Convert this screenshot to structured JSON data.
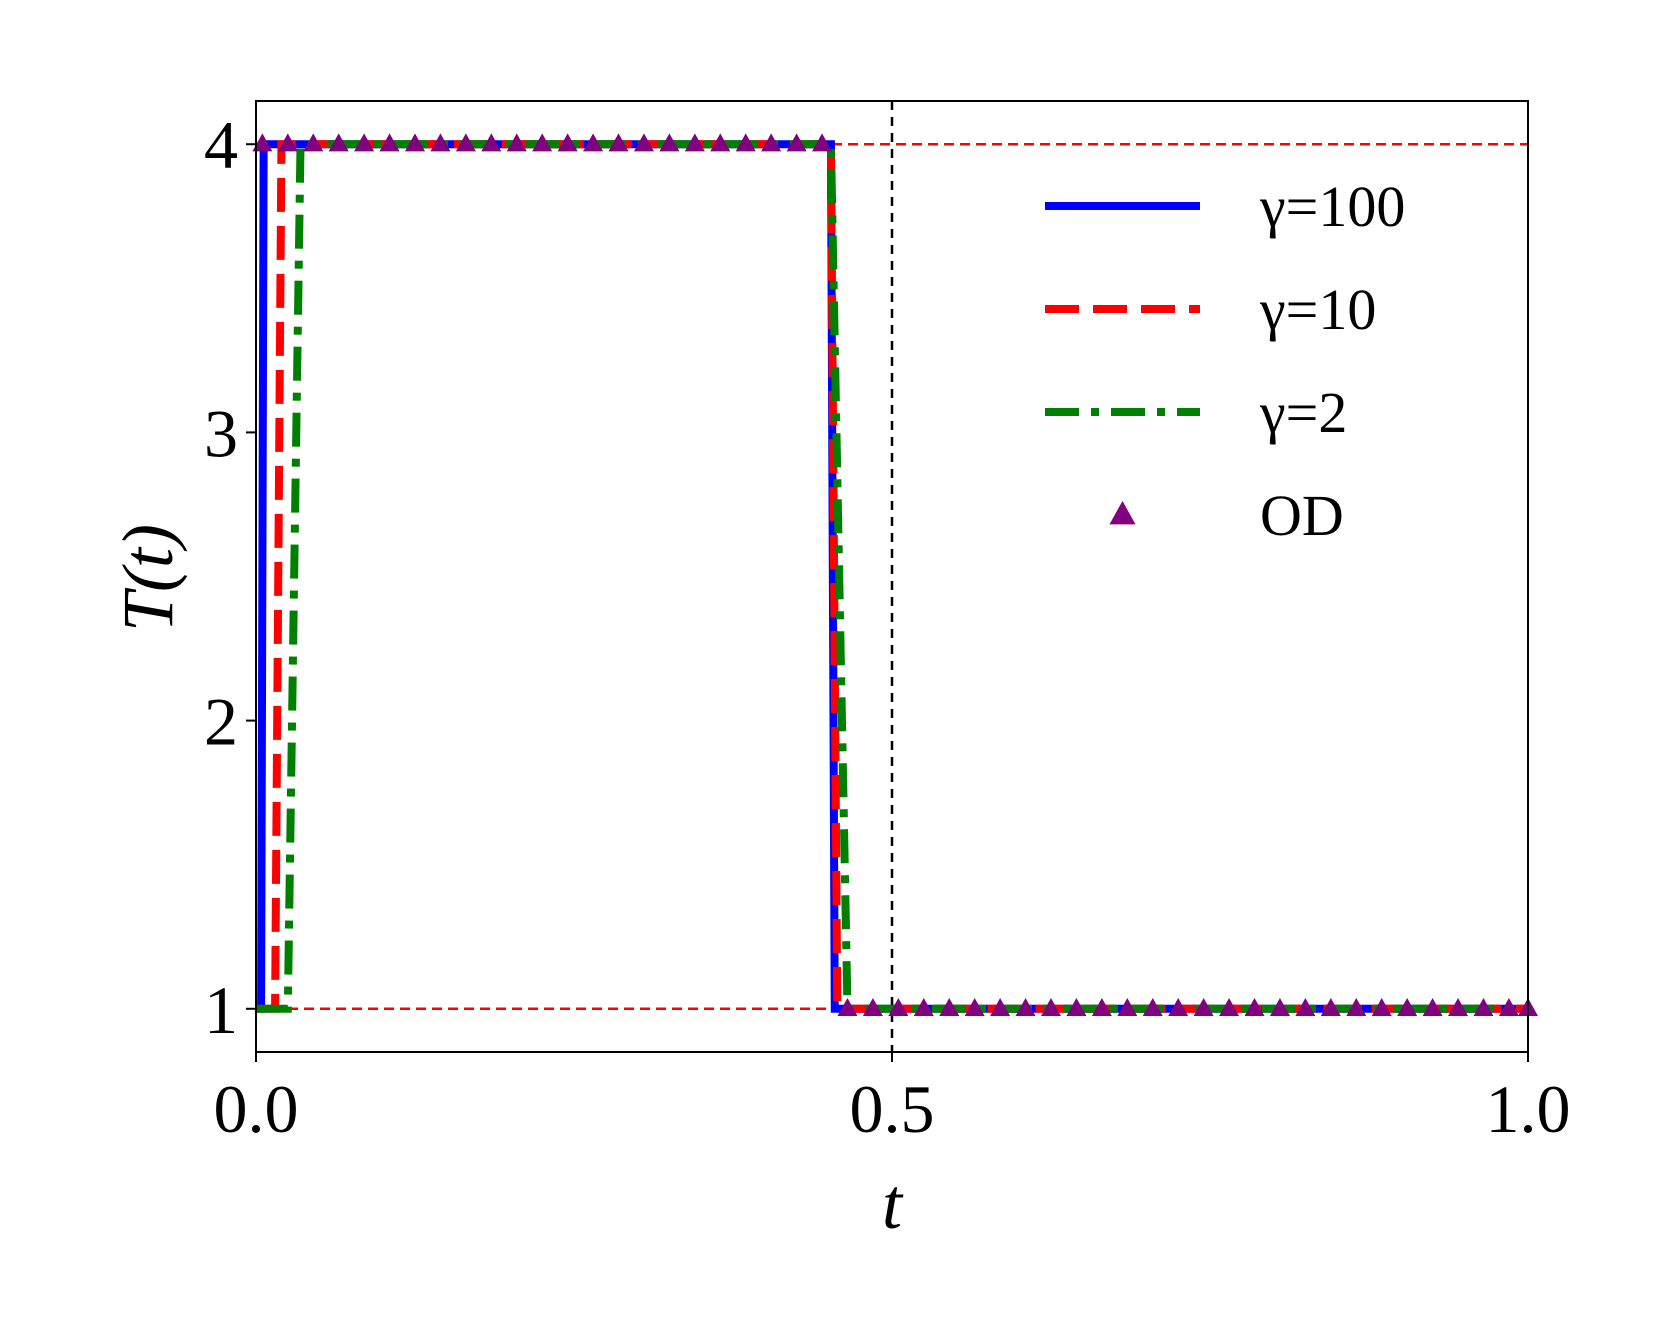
{
  "chart_data": {
    "type": "line",
    "title": "",
    "xlabel": "t",
    "ylabel": "T(t)",
    "xlim": [
      0.0,
      1.0
    ],
    "ylim": [
      0.85,
      4.15
    ],
    "grid": false,
    "legend_position": "top-right",
    "xticks": [
      {
        "value": 0.0,
        "label": "0.0"
      },
      {
        "value": 0.5,
        "label": "0.5"
      },
      {
        "value": 1.0,
        "label": "1.0"
      }
    ],
    "yticks": [
      {
        "value": 1,
        "label": "1"
      },
      {
        "value": 2,
        "label": "2"
      },
      {
        "value": 3,
        "label": "3"
      },
      {
        "value": 4,
        "label": "4"
      }
    ],
    "reference_lines": [
      {
        "orientation": "horizontal",
        "value": 4,
        "color": "#ff0000",
        "style": "dashed"
      },
      {
        "orientation": "horizontal",
        "value": 1,
        "color": "#ff0000",
        "style": "dashed"
      },
      {
        "orientation": "vertical",
        "value": 0.5,
        "color": "#000000",
        "style": "dashed"
      }
    ],
    "series": [
      {
        "name": "γ=100",
        "color": "#0000ff",
        "style": "solid",
        "points": [
          [
            0.0,
            1
          ],
          [
            0.004,
            1
          ],
          [
            0.006,
            4
          ],
          [
            0.452,
            4
          ],
          [
            0.455,
            1
          ],
          [
            1.0,
            1
          ]
        ]
      },
      {
        "name": "γ=10",
        "color": "#ff0000",
        "style": "dashed",
        "points": [
          [
            0.0,
            1
          ],
          [
            0.015,
            1
          ],
          [
            0.02,
            4
          ],
          [
            0.452,
            4
          ],
          [
            0.457,
            1
          ],
          [
            1.0,
            1
          ]
        ]
      },
      {
        "name": "γ=2",
        "color": "#008000",
        "style": "dashdot",
        "points": [
          [
            0.0,
            1
          ],
          [
            0.025,
            1
          ],
          [
            0.035,
            4
          ],
          [
            0.452,
            4
          ],
          [
            0.465,
            1
          ],
          [
            1.0,
            1
          ]
        ]
      },
      {
        "name": "OD",
        "color": "#800080",
        "style": "triangle-markers",
        "points": [
          [
            0.005,
            4
          ],
          [
            0.025,
            4
          ],
          [
            0.045,
            4
          ],
          [
            0.065,
            4
          ],
          [
            0.085,
            4
          ],
          [
            0.105,
            4
          ],
          [
            0.125,
            4
          ],
          [
            0.145,
            4
          ],
          [
            0.165,
            4
          ],
          [
            0.185,
            4
          ],
          [
            0.205,
            4
          ],
          [
            0.225,
            4
          ],
          [
            0.245,
            4
          ],
          [
            0.265,
            4
          ],
          [
            0.285,
            4
          ],
          [
            0.305,
            4
          ],
          [
            0.325,
            4
          ],
          [
            0.345,
            4
          ],
          [
            0.365,
            4
          ],
          [
            0.385,
            4
          ],
          [
            0.405,
            4
          ],
          [
            0.425,
            4
          ],
          [
            0.445,
            4
          ],
          [
            0.465,
            1
          ],
          [
            0.485,
            1
          ],
          [
            0.505,
            1
          ],
          [
            0.525,
            1
          ],
          [
            0.545,
            1
          ],
          [
            0.565,
            1
          ],
          [
            0.585,
            1
          ],
          [
            0.605,
            1
          ],
          [
            0.625,
            1
          ],
          [
            0.645,
            1
          ],
          [
            0.665,
            1
          ],
          [
            0.685,
            1
          ],
          [
            0.705,
            1
          ],
          [
            0.725,
            1
          ],
          [
            0.745,
            1
          ],
          [
            0.765,
            1
          ],
          [
            0.785,
            1
          ],
          [
            0.805,
            1
          ],
          [
            0.825,
            1
          ],
          [
            0.845,
            1
          ],
          [
            0.865,
            1
          ],
          [
            0.885,
            1
          ],
          [
            0.905,
            1
          ],
          [
            0.925,
            1
          ],
          [
            0.945,
            1
          ],
          [
            0.965,
            1
          ],
          [
            0.985,
            1
          ],
          [
            1.0,
            1
          ]
        ]
      }
    ]
  }
}
